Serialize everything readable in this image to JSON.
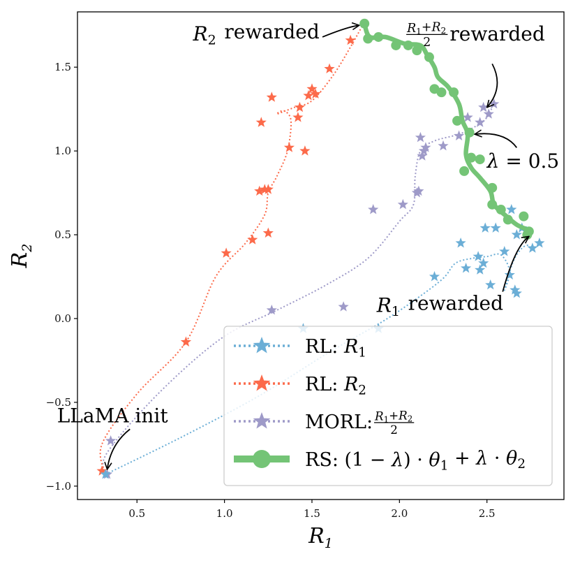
{
  "chart_data": {
    "type": "scatter",
    "xlabel": "R",
    "xlabel_sub": "1",
    "ylabel": "R",
    "ylabel_sub": "2",
    "xlim": [
      0.16,
      2.94
    ],
    "ylim": [
      -1.08,
      1.83
    ],
    "xticks": [
      0.5,
      1.0,
      1.5,
      2.0,
      2.5
    ],
    "xtick_labels": [
      "0.5",
      "1.0",
      "1.5",
      "2.0",
      "2.5"
    ],
    "yticks": [
      -1.0,
      -0.5,
      0.0,
      0.5,
      1.0,
      1.5
    ],
    "ytick_labels": [
      "−1.0",
      "−0.5",
      "0.0",
      "0.5",
      "1.0",
      "1.5"
    ],
    "grid": false,
    "legend_position": "lower-right",
    "colors": {
      "rl_r1": "#6baed6",
      "rl_r2": "#fc6a4a",
      "morl": "#9e9ac8",
      "rs": "#74c476"
    },
    "series": [
      {
        "name": "RL: R1",
        "legend_prefix": "RL: ",
        "legend_math": "R",
        "legend_sub": "1",
        "marker": "star",
        "line": "dotted",
        "curve": [
          [
            0.32,
            -0.93
          ],
          [
            0.75,
            -0.71
          ],
          [
            1.2,
            -0.46
          ],
          [
            1.6,
            -0.2
          ],
          [
            1.9,
            -0.02
          ],
          [
            2.1,
            0.12
          ],
          [
            2.25,
            0.24
          ],
          [
            2.32,
            0.33
          ],
          [
            2.42,
            0.36
          ],
          [
            2.5,
            0.37
          ],
          [
            2.58,
            0.38
          ],
          [
            2.63,
            0.28
          ],
          [
            2.6,
            0.17
          ],
          [
            2.65,
            0.34
          ],
          [
            2.7,
            0.42
          ],
          [
            2.74,
            0.44
          ]
        ],
        "points": [
          [
            0.32,
            -0.93
          ],
          [
            1.45,
            -0.06
          ],
          [
            1.88,
            -0.06
          ],
          [
            2.2,
            0.25
          ],
          [
            2.35,
            0.45
          ],
          [
            2.38,
            0.3
          ],
          [
            2.45,
            0.37
          ],
          [
            2.46,
            0.29
          ],
          [
            2.48,
            0.33
          ],
          [
            2.49,
            0.54
          ],
          [
            2.52,
            0.2
          ],
          [
            2.55,
            0.54
          ],
          [
            2.6,
            0.4
          ],
          [
            2.63,
            0.26
          ],
          [
            2.64,
            0.65
          ],
          [
            2.66,
            0.17
          ],
          [
            2.67,
            0.15
          ],
          [
            2.7,
            0.54
          ],
          [
            2.76,
            0.42
          ],
          [
            2.8,
            0.45
          ],
          [
            2.67,
            0.5
          ]
        ]
      },
      {
        "name": "RL: R2",
        "legend_prefix": "RL: ",
        "legend_math": "R",
        "legend_sub": "2",
        "marker": "star",
        "line": "dotted",
        "curve": [
          [
            0.32,
            -0.93
          ],
          [
            0.3,
            -0.75
          ],
          [
            0.5,
            -0.45
          ],
          [
            0.78,
            -0.14
          ],
          [
            0.95,
            0.25
          ],
          [
            1.12,
            0.45
          ],
          [
            1.23,
            0.62
          ],
          [
            1.25,
            0.75
          ],
          [
            1.3,
            0.85
          ],
          [
            1.36,
            1.0
          ],
          [
            1.38,
            1.18
          ],
          [
            1.34,
            1.24
          ],
          [
            1.3,
            1.22
          ],
          [
            1.4,
            1.26
          ],
          [
            1.5,
            1.3
          ],
          [
            1.62,
            1.45
          ],
          [
            1.72,
            1.62
          ],
          [
            1.8,
            1.77
          ]
        ],
        "points": [
          [
            0.3,
            -0.91
          ],
          [
            0.78,
            -0.14
          ],
          [
            1.01,
            0.39
          ],
          [
            1.16,
            0.47
          ],
          [
            1.2,
            0.76
          ],
          [
            1.21,
            1.17
          ],
          [
            1.23,
            0.77
          ],
          [
            1.25,
            0.51
          ],
          [
            1.25,
            0.77
          ],
          [
            1.27,
            1.32
          ],
          [
            1.37,
            1.02
          ],
          [
            1.42,
            1.2
          ],
          [
            1.43,
            1.26
          ],
          [
            1.46,
            1.0
          ],
          [
            1.48,
            1.33
          ],
          [
            1.5,
            1.37
          ],
          [
            1.52,
            1.34
          ],
          [
            1.6,
            1.49
          ],
          [
            1.72,
            1.66
          ]
        ]
      },
      {
        "name": "MORL: (R1+R2)/2",
        "legend_prefix": "MORL: ",
        "legend_math": "frac",
        "legend_sub": "",
        "marker": "star",
        "line": "dotted",
        "curve": [
          [
            0.32,
            -0.93
          ],
          [
            0.33,
            -0.8
          ],
          [
            0.62,
            -0.45
          ],
          [
            0.98,
            -0.12
          ],
          [
            1.3,
            0.05
          ],
          [
            1.58,
            0.2
          ],
          [
            1.82,
            0.36
          ],
          [
            2.0,
            0.58
          ],
          [
            2.08,
            0.68
          ],
          [
            2.09,
            0.85
          ],
          [
            2.12,
            1.0
          ],
          [
            2.2,
            1.06
          ],
          [
            2.34,
            1.1
          ],
          [
            2.44,
            1.15
          ],
          [
            2.5,
            1.2
          ],
          [
            2.53,
            1.26
          ]
        ],
        "points": [
          [
            0.33,
            -0.93
          ],
          [
            0.35,
            -0.73
          ],
          [
            1.27,
            0.05
          ],
          [
            1.68,
            0.07
          ],
          [
            1.85,
            0.65
          ],
          [
            2.02,
            0.68
          ],
          [
            2.1,
            0.75
          ],
          [
            2.11,
            0.76
          ],
          [
            2.12,
            1.08
          ],
          [
            2.13,
            0.97
          ],
          [
            2.14,
            1.0
          ],
          [
            2.15,
            1.02
          ],
          [
            2.25,
            1.03
          ],
          [
            2.34,
            1.09
          ],
          [
            2.39,
            1.2
          ],
          [
            2.48,
            1.26
          ],
          [
            2.51,
            1.22
          ],
          [
            2.54,
            1.28
          ],
          [
            2.46,
            1.17
          ]
        ]
      },
      {
        "name": "RS: (1−λ)·θ1+λ·θ2",
        "legend_prefix": "RS: ",
        "legend_math": "rs",
        "legend_sub": "",
        "marker": "circle",
        "line": "solid",
        "curve": [
          [
            1.8,
            1.76
          ],
          [
            1.83,
            1.68
          ],
          [
            1.92,
            1.68
          ],
          [
            2.03,
            1.64
          ],
          [
            2.12,
            1.63
          ],
          [
            2.16,
            1.57
          ],
          [
            2.2,
            1.5
          ],
          [
            2.22,
            1.44
          ],
          [
            2.28,
            1.38
          ],
          [
            2.34,
            1.28
          ],
          [
            2.36,
            1.18
          ],
          [
            2.39,
            1.1
          ],
          [
            2.38,
            0.98
          ],
          [
            2.41,
            0.9
          ],
          [
            2.46,
            0.84
          ],
          [
            2.52,
            0.76
          ],
          [
            2.54,
            0.68
          ],
          [
            2.6,
            0.62
          ],
          [
            2.67,
            0.56
          ],
          [
            2.73,
            0.53
          ],
          [
            2.74,
            0.51
          ]
        ],
        "points": [
          [
            1.8,
            1.76
          ],
          [
            1.82,
            1.67
          ],
          [
            1.88,
            1.68
          ],
          [
            1.98,
            1.63
          ],
          [
            2.05,
            1.63
          ],
          [
            2.1,
            1.6
          ],
          [
            2.17,
            1.56
          ],
          [
            2.2,
            1.37
          ],
          [
            2.24,
            1.35
          ],
          [
            2.31,
            1.35
          ],
          [
            2.33,
            1.18
          ],
          [
            2.4,
            1.11
          ],
          [
            2.41,
            0.96
          ],
          [
            2.46,
            0.95
          ],
          [
            2.37,
            0.88
          ],
          [
            2.53,
            0.78
          ],
          [
            2.53,
            0.68
          ],
          [
            2.58,
            0.65
          ],
          [
            2.62,
            0.59
          ],
          [
            2.71,
            0.61
          ],
          [
            2.74,
            0.52
          ],
          [
            2.73,
            0.5
          ]
        ]
      }
    ],
    "annotations": [
      {
        "name": "r2-rewarded",
        "math": "R",
        "sub": "2",
        "text": " rewarded",
        "x": 0.82,
        "y": 1.66,
        "anchor": "start",
        "arrow_from": [
          1.56,
          1.68
        ],
        "arrow_to": [
          1.77,
          1.75
        ],
        "arrow_ctrl": [
          1.7,
          1.74
        ]
      },
      {
        "name": "midpoint-rewarded",
        "math": "frac",
        "sub": "",
        "text": " rewarded",
        "x": 2.37,
        "y": 1.66,
        "anchor": "middle",
        "arrow_from": [
          2.53,
          1.52
        ],
        "arrow_to": [
          2.5,
          1.26
        ],
        "arrow_ctrl": [
          2.6,
          1.38
        ]
      },
      {
        "name": "lambda-annotation",
        "math": "lambda",
        "sub": "",
        "text": "0.5",
        "x": 2.5,
        "y": 0.9,
        "anchor": "start",
        "arrow_from": [
          2.67,
          1.02
        ],
        "arrow_to": [
          2.43,
          1.1
        ],
        "arrow_ctrl": [
          2.6,
          1.12
        ]
      },
      {
        "name": "r1-rewarded",
        "math": "R",
        "sub": "1",
        "text": " rewarded",
        "x": 1.87,
        "y": 0.04,
        "anchor": "start",
        "arrow_from": [
          2.59,
          0.16
        ],
        "arrow_to": [
          2.74,
          0.49
        ],
        "arrow_ctrl": [
          2.66,
          0.43
        ]
      },
      {
        "name": "llama-init",
        "math": "",
        "sub": "",
        "text": "LLaMA init",
        "x": 0.36,
        "y": -0.62,
        "anchor": "middle",
        "arrow_from": [
          0.46,
          -0.66
        ],
        "arrow_to": [
          0.33,
          -0.9
        ],
        "arrow_ctrl": [
          0.35,
          -0.75
        ]
      }
    ],
    "legend_entries": [
      "RL: R1",
      "RL: R2",
      "MORL: (R1+R2)/2",
      "RS: (1−λ)·θ1+λ·θ2"
    ]
  }
}
